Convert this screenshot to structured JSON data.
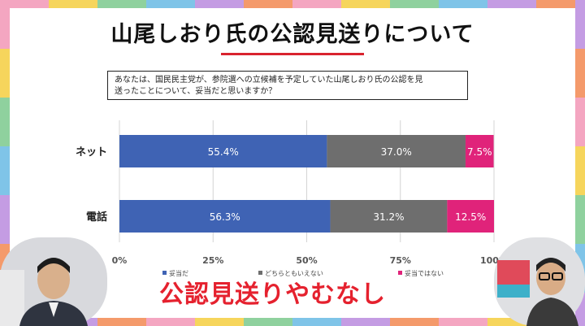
{
  "title": "山尾しおり氏の公認見送りについて",
  "question_lines": [
    "あなたは、国民民主党が、参院選への立候補を予定していた山尾しおり氏の公認を見",
    "送ったことについて、妥当だと思いますか？"
  ],
  "caption": "公認見送りやむなし",
  "colors": {
    "series": [
      "#3f63b4",
      "#6e6e6e",
      "#e0237a"
    ],
    "accent": "#d9232e",
    "frame": [
      "#f4a6c1",
      "#f6d55c",
      "#8fd19e",
      "#7fc4e8",
      "#c49ce3",
      "#f49a6b"
    ]
  },
  "chart_data": {
    "type": "bar",
    "orientation": "horizontal",
    "stacked": true,
    "categories": [
      "ネット",
      "電話"
    ],
    "series": [
      {
        "name": "妥当だ",
        "values": [
          55.4,
          56.3
        ]
      },
      {
        "name": "どちらともいえない",
        "values": [
          37.0,
          31.2
        ]
      },
      {
        "name": "妥当ではない",
        "values": [
          7.5,
          12.5
        ]
      }
    ],
    "value_labels": [
      [
        "55.4%",
        "56.3%"
      ],
      [
        "37.0%",
        "31.2%"
      ],
      [
        "7.5%",
        "12.5%"
      ]
    ],
    "xlim": [
      0,
      100
    ],
    "x_ticks": [
      "0%",
      "25%",
      "50%",
      "75%",
      "100%"
    ],
    "grid": true,
    "legend": "bottom"
  }
}
